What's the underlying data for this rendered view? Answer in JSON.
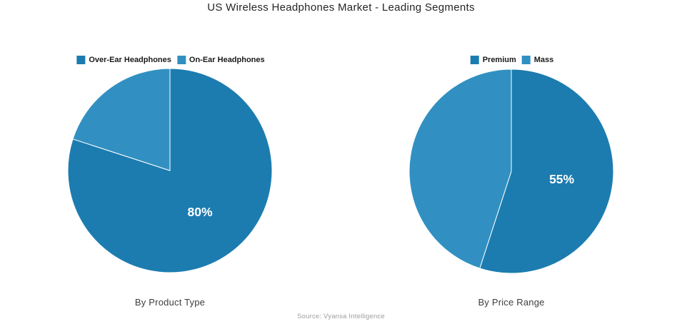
{
  "title": "US Wireless Headphones Market - Leading Segments",
  "source": "Source: Vyansa Intelligence",
  "colors": {
    "primary_blue": "#1c7cb0",
    "secondary_blue": "#3190c1",
    "title_text": "#262626",
    "axis_text": "#3d3d3d",
    "source_text": "#9e9e9e",
    "slice_divider": "#ffffff"
  },
  "chart_data": [
    {
      "type": "pie",
      "title": "By Product Type",
      "labels": [
        "Over-Ear Headphones",
        "On-Ear Headphones"
      ],
      "values": [
        80,
        20
      ],
      "slice_labels": [
        "80%",
        ""
      ],
      "colors": [
        "#1c7cb0",
        "#3190c1"
      ],
      "start_angle_deg": 0,
      "direction": "clockwise",
      "legend_position": "top"
    },
    {
      "type": "pie",
      "title": "By Price Range",
      "labels": [
        "Premium",
        "Mass"
      ],
      "values": [
        55,
        45
      ],
      "slice_labels": [
        "55%",
        ""
      ],
      "colors": [
        "#1c7cb0",
        "#3190c1"
      ],
      "start_angle_deg": 0,
      "direction": "clockwise",
      "legend_position": "top"
    }
  ]
}
